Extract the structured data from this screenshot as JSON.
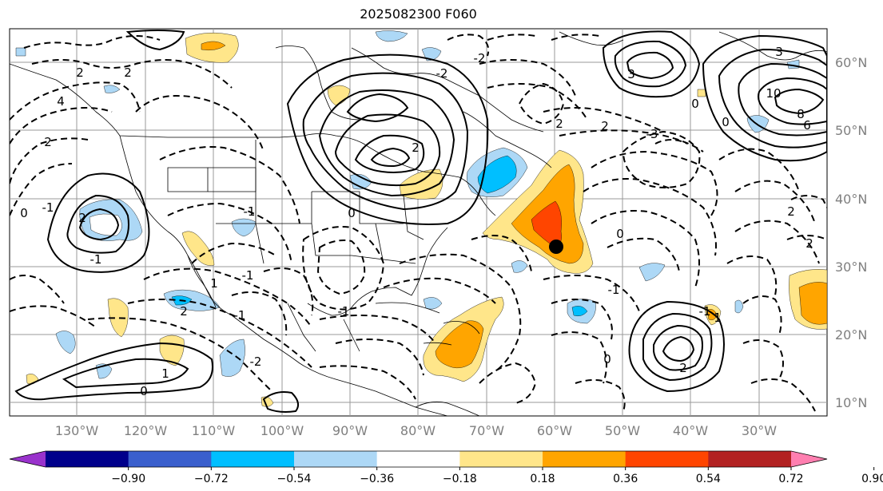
{
  "title": "2025082300 F060",
  "map": {
    "lon_labels": [
      "130°W",
      "120°W",
      "110°W",
      "100°W",
      "90°W",
      "80°W",
      "70°W",
      "60°W",
      "50°W",
      "40°W",
      "30°W"
    ],
    "lat_labels": [
      "60°N",
      "50°N",
      "40°N",
      "30°N",
      "20°N",
      "10°N"
    ],
    "marker": "storm-center-dot",
    "contour_labels": [
      "2",
      "2",
      "4",
      "2",
      "0",
      "-1",
      "2",
      "-1",
      "1",
      "0",
      "2",
      "-2",
      "-1",
      "-1",
      "-1",
      "1",
      "-1",
      "2",
      "0",
      "-2",
      "-2",
      "3",
      "-3",
      "2",
      "2",
      "3",
      "10",
      "8",
      "6",
      "0",
      "2",
      "2",
      "0",
      "-1",
      "0",
      "-1",
      "1",
      "2",
      "0"
    ]
  },
  "colorbar": {
    "ticks": [
      "−0.90",
      "−0.72",
      "−0.54",
      "−0.36",
      "−0.18",
      "0.18",
      "0.36",
      "0.54",
      "0.72",
      "0.90"
    ],
    "colors": [
      "#9932cc",
      "#00008b",
      "#3a5fcd",
      "#00bfff",
      "#add8f6",
      "#ffffff",
      "#ffe68a",
      "#ffa500",
      "#ff4500",
      "#b22222",
      "#ff7fb0"
    ]
  }
}
